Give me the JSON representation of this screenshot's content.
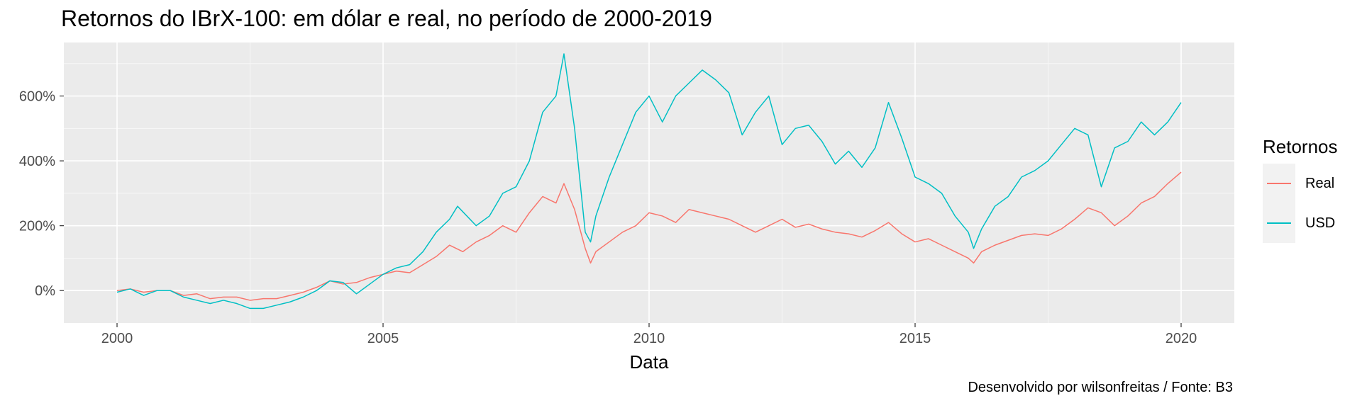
{
  "chart_data": {
    "type": "line",
    "title": "Retornos do IBrX-100: em dólar e real, no período de 2000-2019",
    "xlabel": "Data",
    "ylabel": "",
    "caption": "Desenvolvido por wilsonfreitas / Fonte: B3",
    "xlim": [
      1999.0,
      2021.0
    ],
    "ylim": [
      -100,
      765
    ],
    "x_ticks": [
      2000,
      2005,
      2010,
      2015,
      2020
    ],
    "x_tick_labels": [
      "2000",
      "2005",
      "2010",
      "2015",
      "2020"
    ],
    "y_ticks": [
      0,
      200,
      400,
      600
    ],
    "y_tick_labels": [
      "0%",
      "200%",
      "400%",
      "600%"
    ],
    "grid": true,
    "legend": {
      "title": "Retornos",
      "position": "right"
    },
    "series": [
      {
        "name": "Real",
        "color": "#F8766D",
        "x": [
          2000.0,
          2000.25,
          2000.5,
          2000.75,
          2001.0,
          2001.25,
          2001.5,
          2001.75,
          2002.0,
          2002.25,
          2002.5,
          2002.75,
          2003.0,
          2003.25,
          2003.5,
          2003.75,
          2004.0,
          2004.25,
          2004.5,
          2004.75,
          2005.0,
          2005.25,
          2005.5,
          2005.75,
          2006.0,
          2006.25,
          2006.5,
          2006.75,
          2007.0,
          2007.25,
          2007.5,
          2007.75,
          2008.0,
          2008.25,
          2008.4,
          2008.6,
          2008.8,
          2008.9,
          2009.0,
          2009.25,
          2009.5,
          2009.75,
          2010.0,
          2010.25,
          2010.5,
          2010.75,
          2011.0,
          2011.25,
          2011.5,
          2011.75,
          2012.0,
          2012.25,
          2012.5,
          2012.75,
          2013.0,
          2013.25,
          2013.5,
          2013.75,
          2014.0,
          2014.25,
          2014.5,
          2014.75,
          2015.0,
          2015.25,
          2015.5,
          2015.75,
          2016.0,
          2016.1,
          2016.25,
          2016.5,
          2016.75,
          2017.0,
          2017.25,
          2017.5,
          2017.75,
          2018.0,
          2018.25,
          2018.5,
          2018.75,
          2019.0,
          2019.25,
          2019.5,
          2019.75,
          2020.0
        ],
        "values": [
          0,
          5,
          -5,
          0,
          0,
          -15,
          -10,
          -25,
          -20,
          -20,
          -30,
          -25,
          -25,
          -15,
          -5,
          10,
          30,
          20,
          25,
          40,
          50,
          60,
          55,
          80,
          105,
          140,
          120,
          150,
          170,
          200,
          180,
          240,
          290,
          270,
          330,
          250,
          130,
          85,
          120,
          150,
          180,
          200,
          240,
          230,
          210,
          250,
          240,
          230,
          220,
          200,
          180,
          200,
          220,
          195,
          205,
          190,
          180,
          175,
          165,
          185,
          210,
          175,
          150,
          160,
          140,
          120,
          100,
          85,
          120,
          140,
          155,
          170,
          175,
          170,
          190,
          220,
          255,
          240,
          200,
          230,
          270,
          290,
          330,
          365
        ]
      },
      {
        "name": "USD",
        "color": "#00BFC4",
        "x": [
          2000.0,
          2000.25,
          2000.5,
          2000.75,
          2001.0,
          2001.25,
          2001.5,
          2001.75,
          2002.0,
          2002.25,
          2002.5,
          2002.75,
          2003.0,
          2003.25,
          2003.5,
          2003.75,
          2004.0,
          2004.25,
          2004.5,
          2004.75,
          2005.0,
          2005.25,
          2005.5,
          2005.75,
          2006.0,
          2006.25,
          2006.4,
          2006.75,
          2007.0,
          2007.25,
          2007.5,
          2007.75,
          2008.0,
          2008.25,
          2008.4,
          2008.6,
          2008.8,
          2008.9,
          2009.0,
          2009.25,
          2009.5,
          2009.75,
          2010.0,
          2010.25,
          2010.5,
          2010.75,
          2011.0,
          2011.25,
          2011.5,
          2011.75,
          2012.0,
          2012.25,
          2012.5,
          2012.75,
          2013.0,
          2013.25,
          2013.5,
          2013.75,
          2014.0,
          2014.25,
          2014.5,
          2014.75,
          2015.0,
          2015.25,
          2015.5,
          2015.75,
          2016.0,
          2016.1,
          2016.25,
          2016.5,
          2016.75,
          2017.0,
          2017.25,
          2017.5,
          2017.75,
          2018.0,
          2018.25,
          2018.5,
          2018.75,
          2019.0,
          2019.25,
          2019.5,
          2019.75,
          2020.0
        ],
        "values": [
          -5,
          5,
          -15,
          0,
          0,
          -20,
          -30,
          -40,
          -30,
          -40,
          -55,
          -55,
          -45,
          -35,
          -20,
          0,
          30,
          25,
          -10,
          20,
          50,
          70,
          80,
          120,
          180,
          220,
          260,
          200,
          230,
          300,
          320,
          400,
          550,
          600,
          730,
          500,
          180,
          150,
          230,
          350,
          450,
          550,
          600,
          520,
          600,
          640,
          680,
          650,
          610,
          480,
          550,
          600,
          450,
          500,
          510,
          460,
          390,
          430,
          380,
          440,
          580,
          470,
          350,
          330,
          300,
          230,
          180,
          130,
          190,
          260,
          290,
          350,
          370,
          400,
          450,
          500,
          480,
          320,
          440,
          460,
          520,
          480,
          520,
          580
        ]
      }
    ]
  }
}
